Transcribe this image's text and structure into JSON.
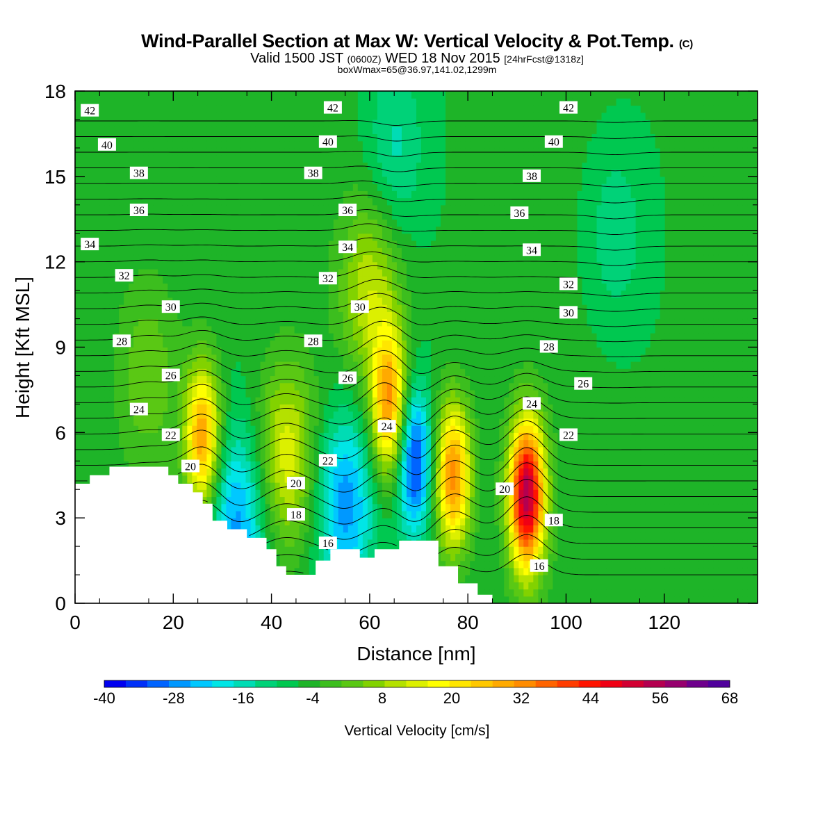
{
  "header": {
    "title": "Wind-Parallel Section at Max W: Vertical Velocity & Pot.Temp.",
    "copyright": "(C)",
    "valid_prefix": "Valid 1500 JST",
    "valid_utc": "(0600Z)",
    "valid_day": "WED 18 Nov 2015",
    "fcst": "[24hrFcst@1318z]",
    "boxwmax": "boxWmax=65@36.97,141.02,1299m"
  },
  "chart_data": {
    "type": "heatmap",
    "xlabel": "Distance [nm]",
    "ylabel": "Height [Kft MSL]",
    "xlim": [
      0,
      139
    ],
    "ylim": [
      0,
      18
    ],
    "xticks": [
      0,
      20,
      40,
      60,
      80,
      100,
      120
    ],
    "yticks": [
      0,
      3,
      6,
      9,
      12,
      15,
      18
    ],
    "colorbar": {
      "label": "Vertical Velocity [cm/s]",
      "ticks": [
        -40,
        -28,
        -16,
        -4,
        8,
        20,
        32,
        44,
        56,
        68
      ],
      "min": -40,
      "max": 68,
      "step": 4,
      "colors": [
        "#0000f0",
        "#0030f8",
        "#0064ff",
        "#0098ff",
        "#00c8ff",
        "#00e6e6",
        "#00dcb4",
        "#00d278",
        "#00c850",
        "#1eb428",
        "#3cbe1e",
        "#5ac814",
        "#82d200",
        "#b4e100",
        "#dcf000",
        "#ffff00",
        "#ffe600",
        "#ffc800",
        "#ffaa00",
        "#ff8c00",
        "#ff6400",
        "#ff3c00",
        "#ff1400",
        "#f00014",
        "#d20032",
        "#b40050",
        "#96006e",
        "#6e008c",
        "#50009c"
      ]
    },
    "terrain_profile": [
      [
        0,
        4.2
      ],
      [
        3,
        4.5
      ],
      [
        7,
        4.8
      ],
      [
        16,
        4.8
      ],
      [
        19,
        4.5
      ],
      [
        21,
        4.2
      ],
      [
        24,
        3.9
      ],
      [
        26,
        3.5
      ],
      [
        28,
        2.9
      ],
      [
        31,
        2.6
      ],
      [
        33,
        2.6
      ],
      [
        35,
        2.3
      ],
      [
        39,
        1.9
      ],
      [
        41,
        1.3
      ],
      [
        43,
        1.0
      ],
      [
        48,
        1.0
      ],
      [
        49,
        1.5
      ],
      [
        52,
        1.9
      ],
      [
        56,
        1.9
      ],
      [
        58,
        1.6
      ],
      [
        60,
        1.6
      ],
      [
        61,
        1.9
      ],
      [
        63,
        1.9
      ],
      [
        66,
        2.2
      ],
      [
        73,
        2.2
      ],
      [
        74,
        1.3
      ],
      [
        77,
        1.3
      ],
      [
        78,
        0.7
      ],
      [
        81,
        0.7
      ],
      [
        82,
        0.3
      ],
      [
        85,
        0.3
      ]
    ],
    "w_centers": [
      {
        "x": 26,
        "z": 5.8,
        "w": 40
      },
      {
        "x": 33,
        "z": 3.0,
        "w": -22
      },
      {
        "x": 43,
        "z": 5.2,
        "w": 22
      },
      {
        "x": 55,
        "z": 3.5,
        "w": -24
      },
      {
        "x": 64,
        "z": 7.0,
        "w": 40
      },
      {
        "x": 69,
        "z": 5.0,
        "w": -32
      },
      {
        "x": 77,
        "z": 4.5,
        "w": 42
      },
      {
        "x": 92,
        "z": 3.8,
        "w": 66
      },
      {
        "x": 60,
        "z": 11.0,
        "w": 18
      },
      {
        "x": 15,
        "z": 8.0,
        "w": 10
      },
      {
        "x": 110,
        "z": 13.0,
        "w": -8
      },
      {
        "x": 65,
        "z": 16.0,
        "w": -10
      }
    ],
    "theta_labels": [
      {
        "text": "42",
        "x": 3,
        "z": 17.3
      },
      {
        "text": "40",
        "x": 6.5,
        "z": 16.1
      },
      {
        "text": "38",
        "x": 13,
        "z": 15.1
      },
      {
        "text": "36",
        "x": 13,
        "z": 13.8
      },
      {
        "text": "34",
        "x": 3,
        "z": 12.6
      },
      {
        "text": "32",
        "x": 10,
        "z": 11.5
      },
      {
        "text": "30",
        "x": 19.5,
        "z": 10.4
      },
      {
        "text": "28",
        "x": 9.5,
        "z": 9.2
      },
      {
        "text": "26",
        "x": 19.5,
        "z": 8.0
      },
      {
        "text": "24",
        "x": 13,
        "z": 6.8
      },
      {
        "text": "22",
        "x": 19.5,
        "z": 5.9
      },
      {
        "text": "20",
        "x": 23.5,
        "z": 4.8
      },
      {
        "text": "42",
        "x": 52.5,
        "z": 17.4
      },
      {
        "text": "40",
        "x": 51.5,
        "z": 16.2
      },
      {
        "text": "38",
        "x": 48.5,
        "z": 15.1
      },
      {
        "text": "36",
        "x": 55.5,
        "z": 13.8
      },
      {
        "text": "34",
        "x": 55.5,
        "z": 12.5
      },
      {
        "text": "32",
        "x": 51.5,
        "z": 11.4
      },
      {
        "text": "30",
        "x": 58,
        "z": 10.4
      },
      {
        "text": "28",
        "x": 48.5,
        "z": 9.2
      },
      {
        "text": "26",
        "x": 55.5,
        "z": 7.9
      },
      {
        "text": "24",
        "x": 63.5,
        "z": 6.2
      },
      {
        "text": "22",
        "x": 51.5,
        "z": 5.0
      },
      {
        "text": "20",
        "x": 45,
        "z": 4.2
      },
      {
        "text": "18",
        "x": 45,
        "z": 3.1
      },
      {
        "text": "16",
        "x": 51.5,
        "z": 2.1
      },
      {
        "text": "42",
        "x": 100.5,
        "z": 17.4
      },
      {
        "text": "40",
        "x": 97.5,
        "z": 16.2
      },
      {
        "text": "38",
        "x": 93,
        "z": 15.0
      },
      {
        "text": "36",
        "x": 90.5,
        "z": 13.7
      },
      {
        "text": "34",
        "x": 93,
        "z": 12.4
      },
      {
        "text": "32",
        "x": 100.5,
        "z": 11.2
      },
      {
        "text": "30",
        "x": 100.5,
        "z": 10.2
      },
      {
        "text": "28",
        "x": 96.5,
        "z": 9.0
      },
      {
        "text": "26",
        "x": 103.5,
        "z": 7.7
      },
      {
        "text": "24",
        "x": 93,
        "z": 7.0
      },
      {
        "text": "22",
        "x": 100.5,
        "z": 5.9
      },
      {
        "text": "20",
        "x": 87.5,
        "z": 4.0
      },
      {
        "text": "18",
        "x": 97.5,
        "z": 2.9
      },
      {
        "text": "16",
        "x": 94.5,
        "z": 1.3
      }
    ]
  }
}
